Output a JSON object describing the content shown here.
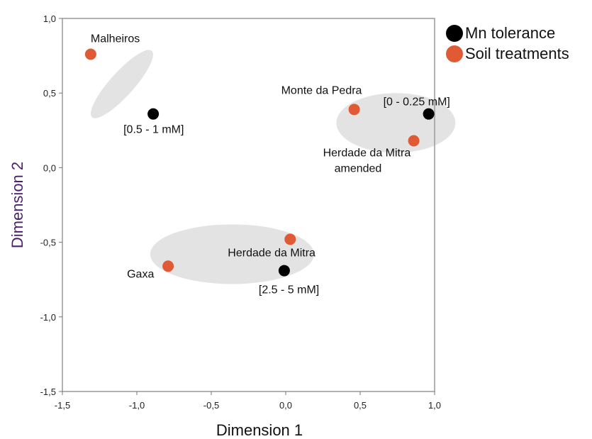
{
  "chart_data": {
    "type": "scatter",
    "xlabel": "Dimension 1",
    "ylabel": "Dimension 2",
    "xlim": [
      -1.5,
      1.0
    ],
    "ylim": [
      -1.5,
      1.0
    ],
    "x_ticks": [
      "-1,5",
      "-1,0",
      "-0,5",
      "0,0",
      "0,5",
      "1,0"
    ],
    "y_ticks": [
      "1,0",
      "0,5",
      "0,0",
      "-0,5",
      "-1,0",
      "-1,5"
    ],
    "grid": false,
    "legend_position": "top-right",
    "series": [
      {
        "name": "Mn tolerance",
        "color": "#000000",
        "points": [
          {
            "x": -0.89,
            "y": 0.36,
            "label": "[0.5 - 1 mM]"
          },
          {
            "x": 0.96,
            "y": 0.36,
            "label": "[0 - 0.25 mM]"
          },
          {
            "x": -0.01,
            "y": -0.69,
            "label": "[2.5 - 5 mM]"
          }
        ]
      },
      {
        "name": "Soil treatments",
        "color": "#e05a35",
        "points": [
          {
            "x": -1.31,
            "y": 0.76,
            "label": "Malheiros"
          },
          {
            "x": 0.46,
            "y": 0.39,
            "label": "Monte da Pedra"
          },
          {
            "x": 0.86,
            "y": 0.18,
            "label": "Herdade da Mitra amended"
          },
          {
            "x": 0.03,
            "y": -0.48,
            "label": "Herdade da Mitra"
          },
          {
            "x": -0.79,
            "y": -0.66,
            "label": "Gaxa"
          }
        ]
      }
    ],
    "clusters": [
      {
        "cx": -1.1,
        "cy": 0.56,
        "rx": 0.3,
        "ry": 0.08,
        "angle_deg": -48
      },
      {
        "cx": 0.74,
        "cy": 0.3,
        "rx": 0.4,
        "ry": 0.2,
        "angle_deg": 0
      },
      {
        "cx": -0.36,
        "cy": -0.58,
        "rx": 0.55,
        "ry": 0.2,
        "angle_deg": 0
      }
    ]
  }
}
